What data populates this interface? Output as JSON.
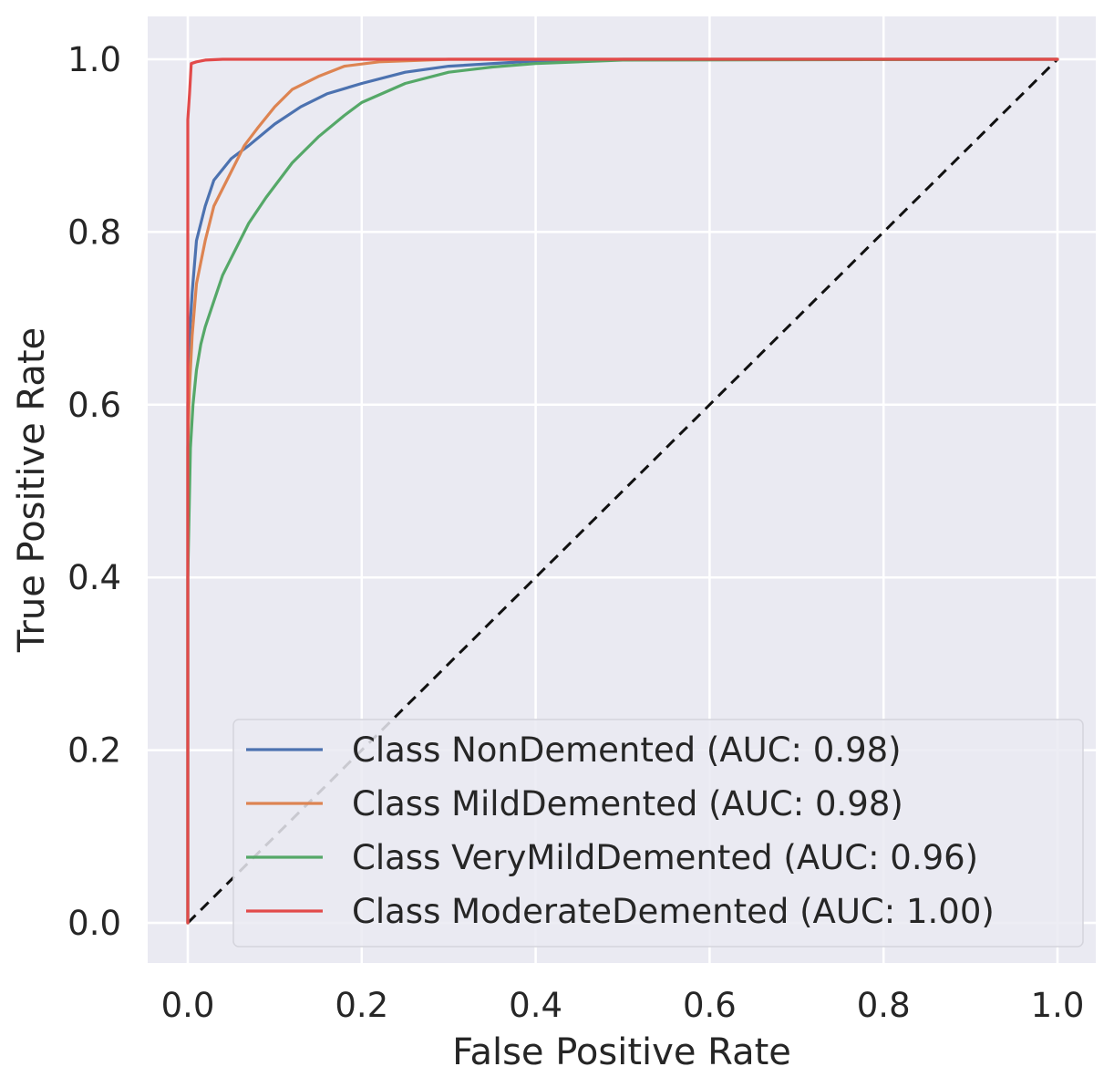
{
  "chart_data": {
    "type": "line",
    "title": "",
    "xlabel": "False Positive Rate",
    "ylabel": "True Positive Rate",
    "xlim": [
      0.0,
      1.0
    ],
    "ylim": [
      0.0,
      1.0
    ],
    "xticks": [
      "0.0",
      "0.2",
      "0.4",
      "0.6",
      "0.8",
      "1.0"
    ],
    "yticks": [
      "0.0",
      "0.2",
      "0.4",
      "0.6",
      "0.8",
      "1.0"
    ],
    "grid": true,
    "background": "#eaeaf2",
    "legend_position": "lower-right",
    "series": [
      {
        "name": "Class NonDemented (AUC: 0.98)",
        "color": "#4c72b0",
        "x": [
          0.0,
          0.0,
          0.002,
          0.005,
          0.01,
          0.02,
          0.03,
          0.05,
          0.07,
          0.1,
          0.13,
          0.16,
          0.2,
          0.25,
          0.3,
          0.4,
          0.5,
          0.7,
          1.0
        ],
        "y": [
          0.0,
          0.6,
          0.68,
          0.73,
          0.79,
          0.83,
          0.86,
          0.885,
          0.9,
          0.925,
          0.945,
          0.96,
          0.972,
          0.985,
          0.992,
          0.998,
          1.0,
          1.0,
          1.0
        ]
      },
      {
        "name": "Class MildDemented (AUC: 0.98)",
        "color": "#dd8452",
        "x": [
          0.0,
          0.0,
          0.002,
          0.005,
          0.01,
          0.02,
          0.03,
          0.05,
          0.065,
          0.08,
          0.1,
          0.12,
          0.15,
          0.18,
          0.22,
          0.3,
          0.4,
          0.6,
          1.0
        ],
        "y": [
          0.0,
          0.55,
          0.62,
          0.68,
          0.74,
          0.79,
          0.83,
          0.87,
          0.9,
          0.92,
          0.945,
          0.965,
          0.98,
          0.992,
          0.997,
          1.0,
          1.0,
          1.0,
          1.0
        ]
      },
      {
        "name": "Class VeryMildDemented (AUC: 0.96)",
        "color": "#55a868",
        "x": [
          0.0,
          0.0,
          0.003,
          0.006,
          0.01,
          0.015,
          0.02,
          0.03,
          0.04,
          0.05,
          0.07,
          0.09,
          0.12,
          0.15,
          0.18,
          0.2,
          0.25,
          0.3,
          0.35,
          0.4,
          0.5,
          1.0
        ],
        "y": [
          0.0,
          0.4,
          0.55,
          0.6,
          0.64,
          0.67,
          0.69,
          0.72,
          0.75,
          0.77,
          0.81,
          0.84,
          0.88,
          0.91,
          0.935,
          0.95,
          0.972,
          0.985,
          0.991,
          0.995,
          0.999,
          1.0
        ]
      },
      {
        "name": "Class ModerateDemented (AUC: 1.00)",
        "color": "#e24a4a",
        "x": [
          0.0,
          0.0,
          0.0,
          0.002,
          0.004,
          0.01,
          0.02,
          0.04,
          1.0
        ],
        "y": [
          0.0,
          0.6,
          0.93,
          0.96,
          0.995,
          0.997,
          0.999,
          1.0,
          1.0
        ]
      }
    ],
    "reference_line": {
      "name": "chance",
      "color": "#111111",
      "style": "dashed",
      "x": [
        0.0,
        1.0
      ],
      "y": [
        0.0,
        1.0
      ]
    }
  }
}
